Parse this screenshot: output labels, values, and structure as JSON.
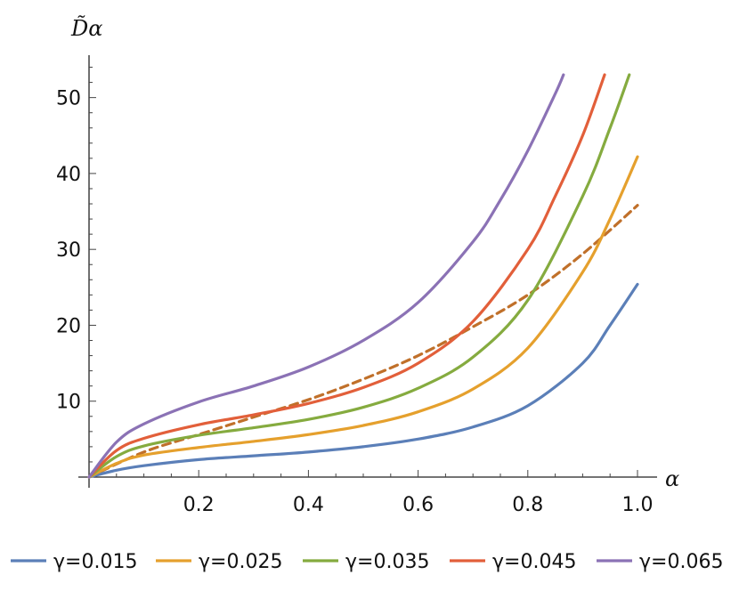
{
  "chart_data": {
    "type": "line",
    "xlabel": "α",
    "ylabel": "D̃α",
    "xlim": [
      0,
      1.0
    ],
    "ylim": [
      0,
      55
    ],
    "xticks": [
      0.2,
      0.4,
      0.6,
      0.8,
      1.0
    ],
    "xtick_labels": [
      "0.2",
      "0.4",
      "0.6",
      "0.8",
      "1.0"
    ],
    "yticks": [
      10,
      20,
      30,
      40,
      50
    ],
    "ytick_labels": [
      "10",
      "20",
      "30",
      "40",
      "50"
    ],
    "grid": false,
    "legend_position": "bottom",
    "series": [
      {
        "name": "γ=0.015",
        "color": "#5b7fb8",
        "style": "solid",
        "x": [
          0,
          0.05,
          0.1,
          0.2,
          0.3,
          0.4,
          0.5,
          0.6,
          0.7,
          0.8,
          0.9,
          0.95,
          1.0
        ],
        "y": [
          0,
          0.9,
          1.5,
          2.3,
          2.8,
          3.3,
          4.0,
          5.0,
          6.6,
          9.4,
          15.0,
          20.0,
          25.4
        ]
      },
      {
        "name": "γ=0.025",
        "color": "#e5a02d",
        "style": "solid",
        "x": [
          0,
          0.05,
          0.1,
          0.2,
          0.3,
          0.4,
          0.5,
          0.6,
          0.7,
          0.8,
          0.9,
          0.95,
          1.0
        ],
        "y": [
          0,
          1.8,
          2.9,
          3.9,
          4.7,
          5.6,
          6.8,
          8.6,
          11.6,
          17.0,
          27.0,
          34.0,
          42.2
        ]
      },
      {
        "name": "γ=0.035",
        "color": "#85ab3f",
        "style": "solid",
        "x": [
          0,
          0.05,
          0.1,
          0.2,
          0.3,
          0.4,
          0.5,
          0.6,
          0.7,
          0.8,
          0.9,
          0.95,
          0.985
        ],
        "y": [
          0,
          2.7,
          4.1,
          5.5,
          6.5,
          7.6,
          9.2,
          11.7,
          15.8,
          23.3,
          37.0,
          46.0,
          53.0
        ]
      },
      {
        "name": "γ=0.045",
        "color": "#e25f3a",
        "style": "solid",
        "x": [
          0,
          0.05,
          0.1,
          0.2,
          0.3,
          0.4,
          0.5,
          0.6,
          0.7,
          0.8,
          0.85,
          0.9,
          0.94
        ],
        "y": [
          0,
          3.5,
          5.1,
          6.9,
          8.2,
          9.7,
          11.8,
          15.0,
          20.5,
          30.0,
          37.0,
          45.0,
          53.0
        ]
      },
      {
        "name": "γ=0.065",
        "color": "#8b72b5",
        "style": "solid",
        "x": [
          0,
          0.05,
          0.1,
          0.2,
          0.3,
          0.4,
          0.5,
          0.6,
          0.7,
          0.75,
          0.8,
          0.85,
          0.865
        ],
        "y": [
          0,
          4.6,
          7.0,
          9.9,
          12.0,
          14.5,
          18.0,
          23.0,
          31.0,
          36.5,
          43.0,
          50.5,
          53.0
        ]
      },
      {
        "name": "",
        "color": "#c0702a",
        "style": "dashed",
        "x": [
          0,
          0.1,
          0.2,
          0.3,
          0.4,
          0.5,
          0.6,
          0.7,
          0.8,
          0.9,
          1.0
        ],
        "y": [
          0,
          3.3,
          5.6,
          7.9,
          10.2,
          12.9,
          16.0,
          19.8,
          24.0,
          29.4,
          35.8
        ]
      }
    ]
  }
}
